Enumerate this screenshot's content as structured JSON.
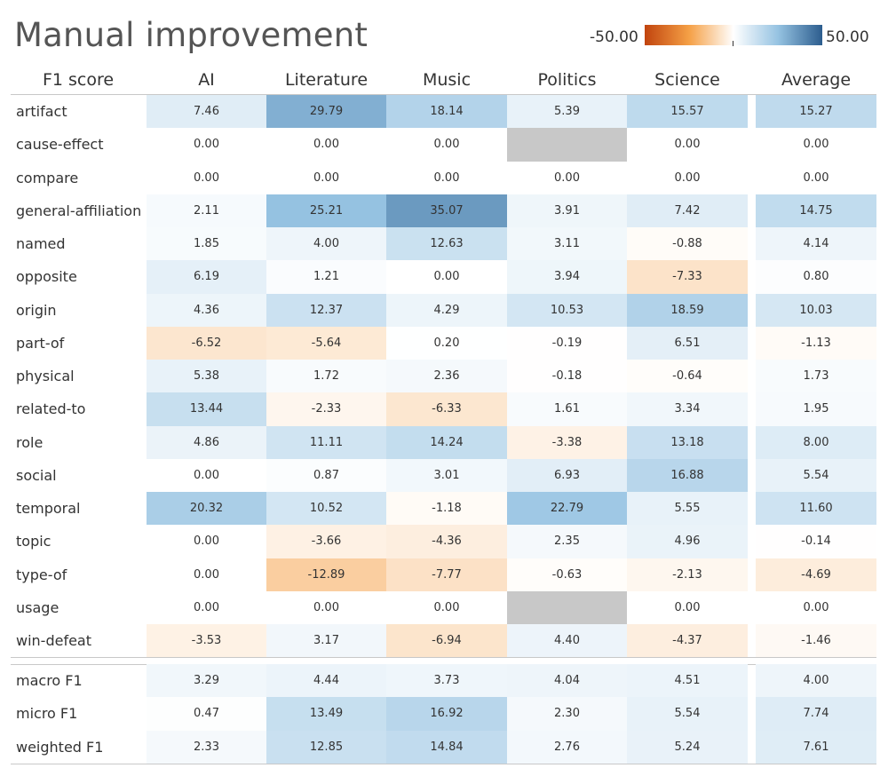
{
  "title": "Manual improvement",
  "legend": {
    "min_label": "-50.00",
    "max_label": "50.00",
    "min": -50,
    "max": 50,
    "neg_color": "#c1440e",
    "mid_color": "#ffffff",
    "pos_color": "#2c5d8e",
    "missing_color": "#c8c8c8"
  },
  "chart_data": {
    "type": "heatmap",
    "title": "Manual improvement",
    "row_header": "F1 score",
    "columns": [
      "AI",
      "Literature",
      "Music",
      "Politics",
      "Science",
      "Average"
    ],
    "rows": [
      {
        "label": "artifact",
        "values": [
          "7.46",
          "29.79",
          "18.14",
          "5.39",
          "15.57",
          "15.27"
        ]
      },
      {
        "label": "cause-effect",
        "values": [
          "0.00",
          "0.00",
          "0.00",
          null,
          "0.00",
          "0.00"
        ]
      },
      {
        "label": "compare",
        "values": [
          "0.00",
          "0.00",
          "0.00",
          "0.00",
          "0.00",
          "0.00"
        ]
      },
      {
        "label": "general-affiliation",
        "values": [
          "2.11",
          "25.21",
          "35.07",
          "3.91",
          "7.42",
          "14.75"
        ]
      },
      {
        "label": "named",
        "values": [
          "1.85",
          "4.00",
          "12.63",
          "3.11",
          "-0.88",
          "4.14"
        ]
      },
      {
        "label": "opposite",
        "values": [
          "6.19",
          "1.21",
          "0.00",
          "3.94",
          "-7.33",
          "0.80"
        ]
      },
      {
        "label": "origin",
        "values": [
          "4.36",
          "12.37",
          "4.29",
          "10.53",
          "18.59",
          "10.03"
        ]
      },
      {
        "label": "part-of",
        "values": [
          "-6.52",
          "-5.64",
          "0.20",
          "-0.19",
          "6.51",
          "-1.13"
        ]
      },
      {
        "label": "physical",
        "values": [
          "5.38",
          "1.72",
          "2.36",
          "-0.18",
          "-0.64",
          "1.73"
        ]
      },
      {
        "label": "related-to",
        "values": [
          "13.44",
          "-2.33",
          "-6.33",
          "1.61",
          "3.34",
          "1.95"
        ]
      },
      {
        "label": "role",
        "values": [
          "4.86",
          "11.11",
          "14.24",
          "-3.38",
          "13.18",
          "8.00"
        ]
      },
      {
        "label": "social",
        "values": [
          "0.00",
          "0.87",
          "3.01",
          "6.93",
          "16.88",
          "5.54"
        ]
      },
      {
        "label": "temporal",
        "values": [
          "20.32",
          "10.52",
          "-1.18",
          "22.79",
          "5.55",
          "11.60"
        ]
      },
      {
        "label": "topic",
        "values": [
          "0.00",
          "-3.66",
          "-4.36",
          "2.35",
          "4.96",
          "-0.14"
        ]
      },
      {
        "label": "type-of",
        "values": [
          "0.00",
          "-12.89",
          "-7.77",
          "-0.63",
          "-2.13",
          "-4.69"
        ]
      },
      {
        "label": "usage",
        "values": [
          "0.00",
          "0.00",
          "0.00",
          null,
          "0.00",
          "0.00"
        ]
      },
      {
        "label": "win-defeat",
        "values": [
          "-3.53",
          "3.17",
          "-6.94",
          "4.40",
          "-4.37",
          "-1.46"
        ]
      }
    ],
    "summary_rows": [
      {
        "label": "macro F1",
        "values": [
          "3.29",
          "4.44",
          "3.73",
          "4.04",
          "4.51",
          "4.00"
        ]
      },
      {
        "label": "micro F1",
        "values": [
          "0.47",
          "13.49",
          "16.92",
          "2.30",
          "5.54",
          "7.74"
        ]
      },
      {
        "label": "weighted F1",
        "values": [
          "2.33",
          "12.85",
          "14.84",
          "2.76",
          "5.24",
          "7.61"
        ]
      }
    ],
    "color_range": [
      -50,
      50
    ]
  }
}
